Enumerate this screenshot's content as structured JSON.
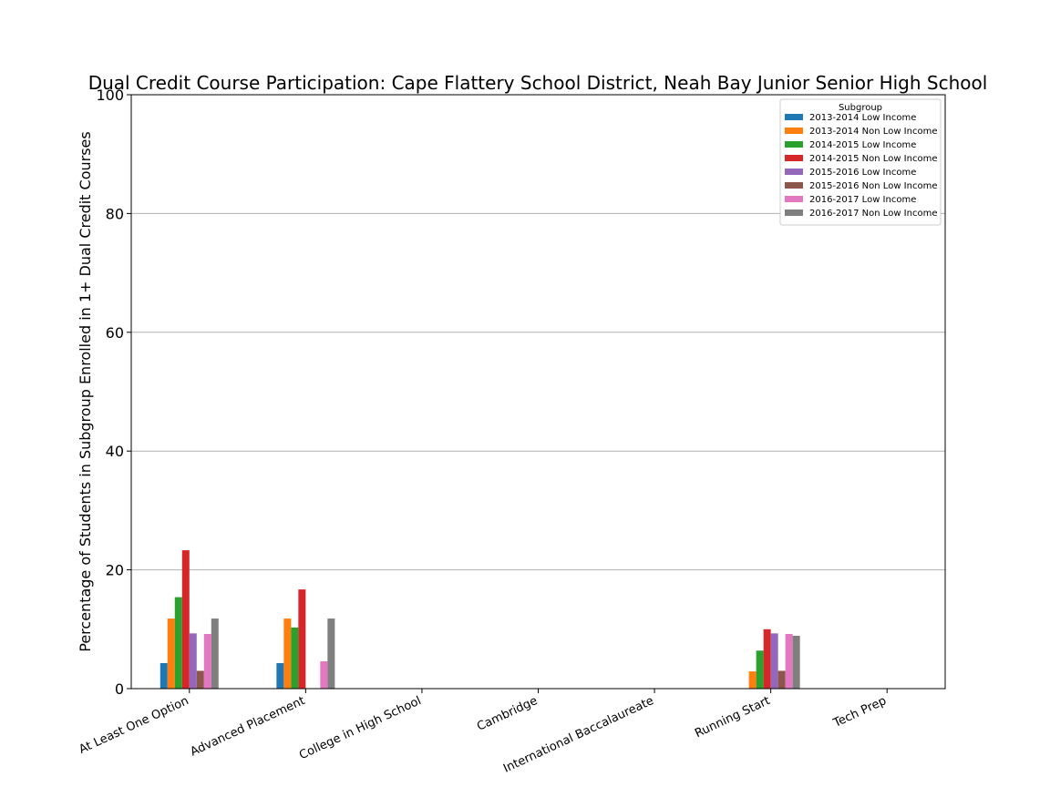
{
  "chart_data": {
    "type": "bar",
    "title": "Dual Credit Course Participation: Cape Flattery School District, Neah Bay Junior  Senior High School",
    "xlabel": "",
    "ylabel": "Percentage of Students in Subgroup Enrolled in 1+ Dual Credit Courses",
    "ylim": [
      0,
      100
    ],
    "yticks": [
      0,
      20,
      40,
      60,
      80,
      100
    ],
    "grid": "y",
    "legend_title": "Subgroup",
    "legend_position": "top-right",
    "categories": [
      "At Least One Option",
      "Advanced Placement",
      "College in High School",
      "Cambridge",
      "International Baccalaureate",
      "Running Start",
      "Tech Prep"
    ],
    "series": [
      {
        "name": "2013-2014 Low Income",
        "color": "#1f77b4",
        "values": [
          4.3,
          4.3,
          0,
          0,
          0,
          0,
          0
        ]
      },
      {
        "name": "2013-2014 Non Low Income",
        "color": "#ff7f0e",
        "values": [
          11.8,
          11.8,
          0,
          0,
          0,
          2.9,
          0
        ]
      },
      {
        "name": "2014-2015 Low Income",
        "color": "#2ca02c",
        "values": [
          15.4,
          10.3,
          0,
          0,
          0,
          6.4,
          0
        ]
      },
      {
        "name": "2014-2015 Non Low Income",
        "color": "#d62728",
        "values": [
          23.3,
          16.7,
          0,
          0,
          0,
          10.0,
          0
        ]
      },
      {
        "name": "2015-2016 Low Income",
        "color": "#9467bd",
        "values": [
          9.3,
          0,
          0,
          0,
          0,
          9.3,
          0
        ]
      },
      {
        "name": "2015-2016 Non Low Income",
        "color": "#8c564b",
        "values": [
          3.0,
          0,
          0,
          0,
          0,
          3.0,
          0
        ]
      },
      {
        "name": "2016-2017 Low Income",
        "color": "#e377c2",
        "values": [
          9.2,
          4.6,
          0,
          0,
          0,
          9.2,
          0
        ]
      },
      {
        "name": "2016-2017 Non Low Income",
        "color": "#7f7f7f",
        "values": [
          11.8,
          11.8,
          0,
          0,
          0,
          8.9,
          0
        ]
      }
    ]
  }
}
